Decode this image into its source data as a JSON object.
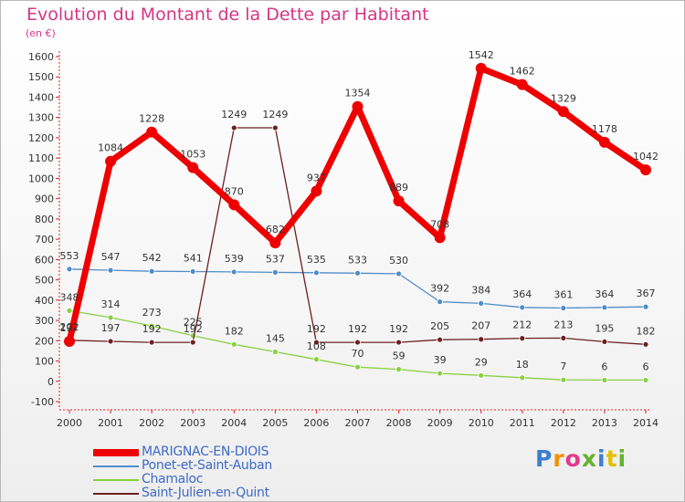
{
  "title": "Evolution du Montant de la Dette par Habitant",
  "subtitle": "(en €)",
  "logo_text": "Proxiti",
  "chart_data": {
    "type": "line",
    "title": "Evolution du Montant de la Dette par Habitant",
    "subtitle": "(en €)",
    "xlabel": "",
    "ylabel": "",
    "x": [
      "2000",
      "2001",
      "2002",
      "2003",
      "2004",
      "2005",
      "2006",
      "2007",
      "2008",
      "2009",
      "2010",
      "2011",
      "2012",
      "2013",
      "2014"
    ],
    "ylim": [
      -100,
      1600
    ],
    "yticks": [
      -100,
      0,
      100,
      200,
      300,
      400,
      500,
      600,
      700,
      800,
      900,
      1000,
      1100,
      1200,
      1300,
      1400,
      1500,
      1600
    ],
    "grid": false,
    "legend_position": "bottom-left",
    "series": [
      {
        "name": "MARIGNAC-EN-DIOIS",
        "color": "#ee0000",
        "values": [
          197,
          1084,
          1228,
          1053,
          870,
          682,
          937,
          1354,
          889,
          708,
          1542,
          1462,
          1329,
          1178,
          1042
        ]
      },
      {
        "name": "Ponet-et-Saint-Auban",
        "color": "#4f8cc9",
        "values": [
          553,
          547,
          542,
          541,
          539,
          537,
          535,
          533,
          530,
          392,
          384,
          364,
          361,
          364,
          367
        ]
      },
      {
        "name": "Chamaloc",
        "color": "#88d040",
        "values": [
          348,
          314,
          273,
          225,
          182,
          145,
          108,
          70,
          59,
          39,
          29,
          18,
          7,
          6,
          6
        ]
      },
      {
        "name": "Saint-Julien-en-Quint",
        "color": "#6d1f22",
        "values": [
          202,
          197,
          192,
          192,
          1249,
          1249,
          192,
          192,
          192,
          205,
          207,
          212,
          213,
          195,
          182
        ]
      }
    ]
  }
}
